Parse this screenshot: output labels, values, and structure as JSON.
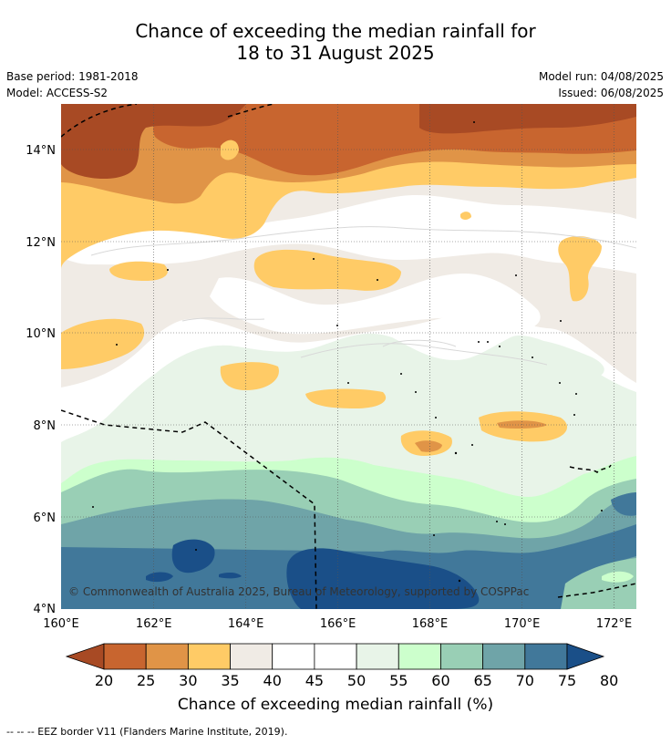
{
  "title": {
    "line1": "Chance of exceeding the median rainfall for",
    "line2": "18 to 31 August 2025"
  },
  "meta": {
    "base_period": "Base period: 1981-2018",
    "model": "Model: ACCESS-S2",
    "model_run": "Model run: 04/08/2025",
    "issued": "Issued: 06/08/2025"
  },
  "map": {
    "lon_range": [
      160,
      172.5
    ],
    "lat_range": [
      4,
      15
    ],
    "lon_ticks": [
      "160°E",
      "162°E",
      "164°E",
      "166°E",
      "168°E",
      "170°E",
      "172°E"
    ],
    "lat_ticks": [
      "4°N",
      "6°N",
      "8°N",
      "10°N",
      "12°N",
      "14°N"
    ],
    "grid": true,
    "copyright": "© Commonwealth of Australia 2025, Bureau of Meteorology, supported by COSPPac"
  },
  "colorbar": {
    "labels": [
      "20",
      "25",
      "30",
      "35",
      "40",
      "45",
      "50",
      "55",
      "60",
      "65",
      "70",
      "75",
      "80"
    ],
    "colors": [
      "#a84a24",
      "#c8652f",
      "#e09447",
      "#ffcb66",
      "#f0ebe5",
      "#ffffff",
      "#ffffff",
      "#e8f4e8",
      "#ccffcc",
      "#99cfb5",
      "#6fa4a8",
      "#41789a",
      "#1a4f88"
    ],
    "title": "Chance of exceeding median rainfall (%)"
  },
  "footnote": "--  --  -- EEZ border V11 (Flanders Marine Institute, 2019)."
}
